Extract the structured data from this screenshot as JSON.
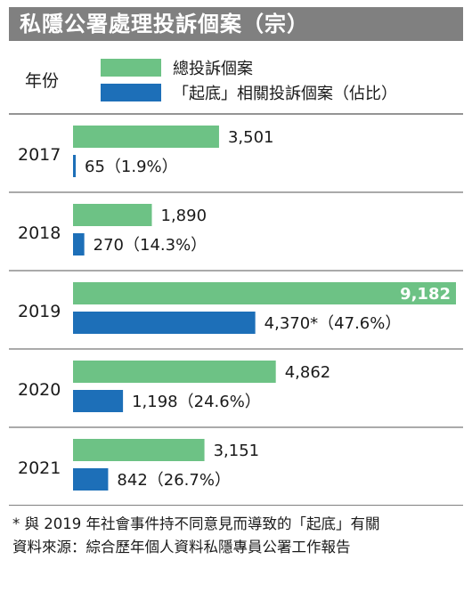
{
  "title": "私隱公署處理投訴個案（宗）",
  "legend": {
    "year_label": "年份",
    "total_label": "總投訴個案",
    "doxxing_label": "「起底」相關投訴個案（佔比）"
  },
  "colors": {
    "total": "#6dc285",
    "doxxing": "#1d6fb8",
    "header": "#808080",
    "divider": "#555555"
  },
  "chart_data": {
    "type": "bar",
    "orientation": "horizontal",
    "categories": [
      "2017",
      "2018",
      "2019",
      "2020",
      "2021"
    ],
    "series": [
      {
        "name": "總投訴個案",
        "values": [
          3501,
          1890,
          9182,
          4862,
          3151
        ],
        "labels": [
          "3,501",
          "1,890",
          "9,182",
          "4,862",
          "3,151"
        ]
      },
      {
        "name": "「起底」相關投訴個案（佔比）",
        "values": [
          65,
          270,
          4370,
          1198,
          842
        ],
        "labels": [
          "65（1.9%）",
          "270（14.3%）",
          "4,370*（47.6%）",
          "1,198（24.6%）",
          "842（26.7%）"
        ]
      }
    ],
    "xlim": [
      0,
      9182
    ]
  },
  "footnote": "* 與 2019 年社會事件持不同意見而導致的「起底」有關",
  "source": "資料來源：綜合歷年個人資料私隱專員公署工作報告"
}
